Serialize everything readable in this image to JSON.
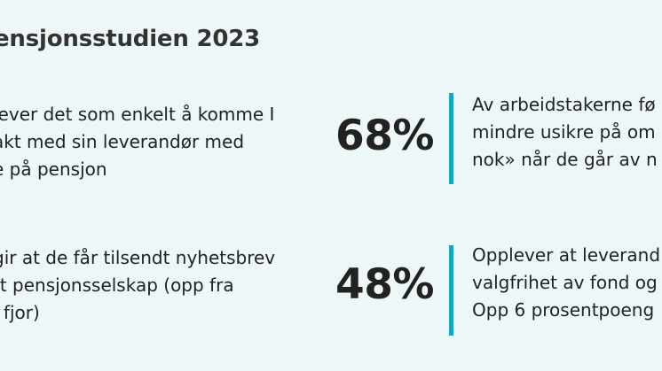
{
  "title": "ensjonsstudien 2023",
  "accent_color": "#1aa7bb",
  "stats": [
    {
      "left_lines": [
        "lever det som enkelt å komme I",
        "akt med sin leverandør med",
        "e på pensjon"
      ],
      "value": "68%",
      "right_lines": [
        "Av arbeidstakerne fø",
        "mindre usikre på om",
        "nok» når de går av n"
      ]
    },
    {
      "left_lines": [
        "gir at de får tilsendt nyhetsbrev",
        "tt pensjonsselskap (opp fra",
        "i fjor)"
      ],
      "value": "48%",
      "right_lines": [
        "Opplever at leverand",
        "valgfrihet av fond og",
        "Opp 6 prosentpoeng"
      ]
    }
  ]
}
